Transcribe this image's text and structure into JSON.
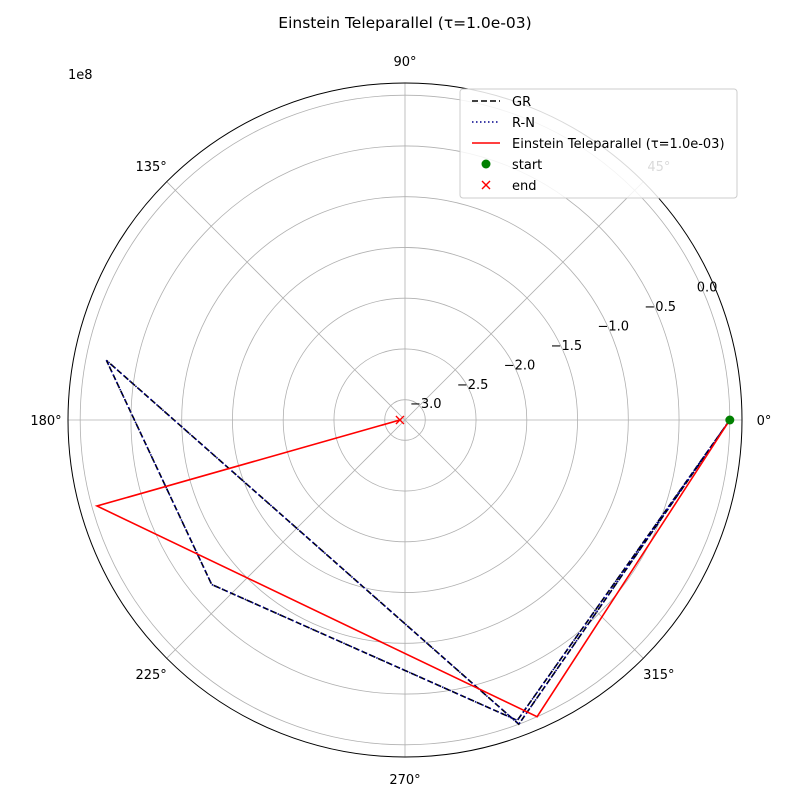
{
  "chart_data": {
    "type": "polar-line",
    "title": "Einstein Teleparallel (τ=1.0e-03)",
    "radial_scale_label": "1e8",
    "r_range": [
      -3.2,
      0.12
    ],
    "angle_ticks": [
      {
        "deg": 0,
        "label": "0°"
      },
      {
        "deg": 45,
        "label": "45°"
      },
      {
        "deg": 90,
        "label": "90°"
      },
      {
        "deg": 135,
        "label": "135°"
      },
      {
        "deg": 180,
        "label": "180°"
      },
      {
        "deg": 225,
        "label": "225°"
      },
      {
        "deg": 270,
        "label": "270°"
      },
      {
        "deg": 315,
        "label": "315°"
      }
    ],
    "radial_ticks": [
      {
        "value": -3.0,
        "label": "−3.0"
      },
      {
        "value": -2.5,
        "label": "−2.5"
      },
      {
        "value": -2.0,
        "label": "−2.0"
      },
      {
        "value": -1.5,
        "label": "−1.5"
      },
      {
        "value": -1.0,
        "label": "−1.0"
      },
      {
        "value": -0.5,
        "label": "−0.5"
      },
      {
        "value": 0.0,
        "label": "0.0"
      }
    ],
    "grid": true,
    "legend_position": "top-right",
    "series": [
      {
        "name": "GR",
        "color": "#000000",
        "style": "dashed",
        "theta_deg": [
          0,
          290.5,
          168.7,
          220.4,
          290.5,
          0
        ],
        "r": [
          0.0,
          0.0,
          -0.2,
          -0.7,
          -0.04,
          0.0
        ]
      },
      {
        "name": "R-N",
        "color": "#00008b",
        "style": "dotted",
        "theta_deg": [
          0,
          290.5,
          168.7,
          220.4,
          290.5,
          0
        ],
        "r": [
          0.0,
          0.0,
          -0.2,
          -0.7,
          -0.04,
          0.0
        ]
      },
      {
        "name": "Einstein Teleparallel (τ=1.0e-03)",
        "color": "#ff0000",
        "style": "solid",
        "theta_deg": [
          0,
          294.0,
          195.6,
          180.0
        ],
        "r": [
          0.0,
          0.0,
          -0.05,
          -3.15
        ]
      }
    ],
    "markers": [
      {
        "name": "start",
        "color": "#008000",
        "symbol": "circle",
        "theta_deg": 0,
        "r": 0.0
      },
      {
        "name": "end",
        "color": "#ff0000",
        "symbol": "x",
        "theta_deg": 180.0,
        "r": -3.15
      }
    ]
  }
}
